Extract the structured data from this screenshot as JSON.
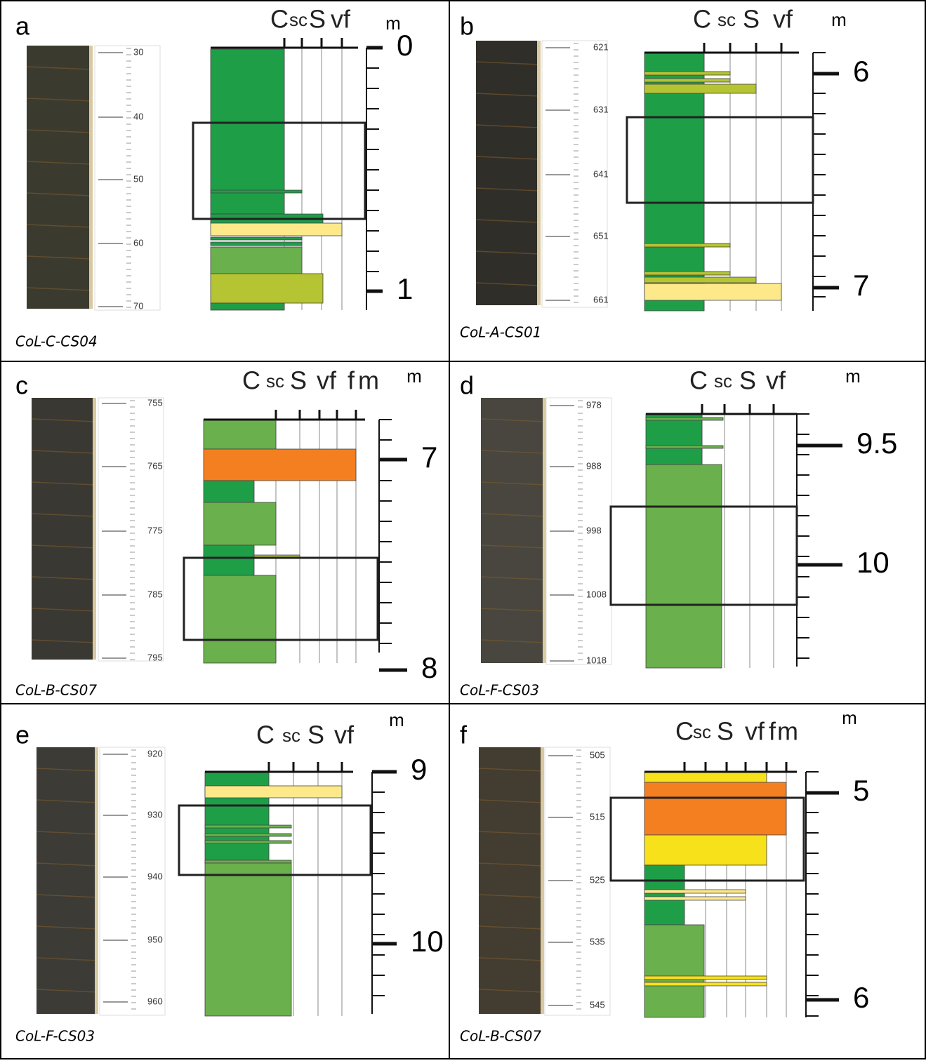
{
  "panels": [
    {
      "letter": "a",
      "caption": "CoL-C-CS04",
      "ruler_labels": [
        30,
        40,
        50,
        60,
        70
      ],
      "grain_scale": [
        "C",
        "sc",
        "S",
        "vf"
      ],
      "depth_unit": "m",
      "depth_labels": [
        0,
        1
      ]
    },
    {
      "letter": "b",
      "caption": "CoL-A-CS01",
      "ruler_labels": [
        621,
        631,
        641,
        651,
        661
      ],
      "grain_scale": [
        "C",
        "sc",
        "S",
        "vf"
      ],
      "depth_unit": "m",
      "depth_labels": [
        6,
        7
      ]
    },
    {
      "letter": "c",
      "caption": "CoL-B-CS07",
      "ruler_labels": [
        755,
        765,
        775,
        785,
        795
      ],
      "grain_scale": [
        "C",
        "sc",
        "S",
        "vf",
        "f",
        "m"
      ],
      "depth_unit": "m",
      "depth_labels": [
        7,
        8
      ]
    },
    {
      "letter": "d",
      "caption": "CoL-F-CS03",
      "ruler_labels": [
        978,
        988,
        998,
        1008,
        1018
      ],
      "grain_scale": [
        "C",
        "sc",
        "S",
        "vf"
      ],
      "depth_unit": "m",
      "depth_labels": [
        9.5,
        10
      ]
    },
    {
      "letter": "e",
      "caption": "CoL-F-CS03",
      "ruler_labels": [
        920,
        930,
        940,
        950,
        960
      ],
      "grain_scale": [
        "C",
        "sc",
        "S",
        "vf"
      ],
      "depth_unit": "m",
      "depth_labels": [
        9,
        10
      ]
    },
    {
      "letter": "f",
      "caption": "CoL-B-CS07",
      "ruler_labels": [
        505,
        515,
        525,
        535,
        545
      ],
      "grain_scale": [
        "C",
        "sc",
        "S",
        "vf",
        "f",
        "m"
      ],
      "depth_unit": "m",
      "depth_labels": [
        5,
        6
      ]
    }
  ]
}
